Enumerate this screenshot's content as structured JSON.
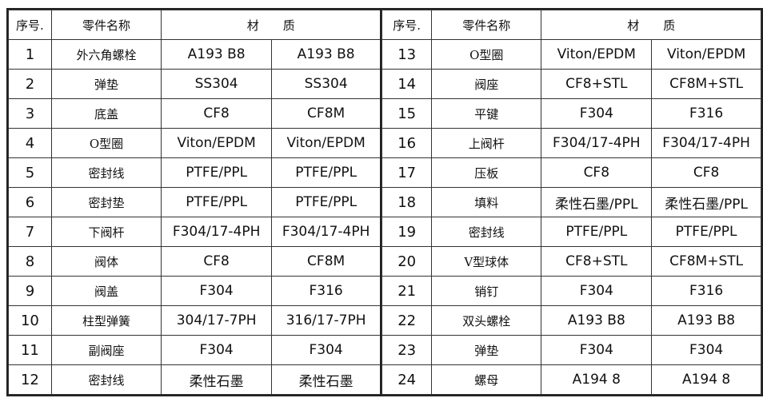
{
  "header": {
    "no": "序号.",
    "name": "零件名称",
    "material": "材　　质"
  },
  "left_rows": [
    {
      "no": "1",
      "name": "外六角螺栓",
      "m1": "A193  B8",
      "m2": "A193  B8"
    },
    {
      "no": "2",
      "name": "弹垫",
      "m1": "SS304",
      "m2": "SS304"
    },
    {
      "no": "3",
      "name": "底盖",
      "m1": "CF8",
      "m2": "CF8M"
    },
    {
      "no": "4",
      "name": "O型圈",
      "m1": "Viton/EPDM",
      "m2": "Viton/EPDM"
    },
    {
      "no": "5",
      "name": "密封线",
      "m1": "PTFE/PPL",
      "m2": "PTFE/PPL"
    },
    {
      "no": "6",
      "name": "密封垫",
      "m1": "PTFE/PPL",
      "m2": "PTFE/PPL"
    },
    {
      "no": "7",
      "name": "下阀杆",
      "m1": "F304/17-4PH",
      "m2": "F304/17-4PH"
    },
    {
      "no": "8",
      "name": "阀体",
      "m1": "CF8",
      "m2": "CF8M"
    },
    {
      "no": "9",
      "name": "阀盖",
      "m1": "F304",
      "m2": "F316"
    },
    {
      "no": "10",
      "name": "柱型弹簧",
      "m1": "304/17-7PH",
      "m2": "316/17-7PH"
    },
    {
      "no": "11",
      "name": "副阀座",
      "m1": "F304",
      "m2": "F304"
    },
    {
      "no": "12",
      "name": "密封线",
      "m1": "柔性石墨",
      "m2": "柔性石墨"
    }
  ],
  "right_rows": [
    {
      "no": "13",
      "name": "O型圈",
      "m1": "Viton/EPDM",
      "m2": "Viton/EPDM"
    },
    {
      "no": "14",
      "name": "阀座",
      "m1": "CF8+STL",
      "m2": "CF8M+STL"
    },
    {
      "no": "15",
      "name": "平键",
      "m1": "F304",
      "m2": "F316"
    },
    {
      "no": "16",
      "name": "上阀杆",
      "m1": "F304/17-4PH",
      "m2": "F304/17-4PH"
    },
    {
      "no": "17",
      "name": "压板",
      "m1": "CF8",
      "m2": "CF8"
    },
    {
      "no": "18",
      "name": "填料",
      "m1": "柔性石墨/PPL",
      "m2": "柔性石墨/PPL"
    },
    {
      "no": "19",
      "name": "密封线",
      "m1": "PTFE/PPL",
      "m2": "PTFE/PPL"
    },
    {
      "no": "20",
      "name": "V型球体",
      "m1": "CF8+STL",
      "m2": "CF8M+STL"
    },
    {
      "no": "21",
      "name": "销钉",
      "m1": "F304",
      "m2": "F316"
    },
    {
      "no": "22",
      "name": "双头螺栓",
      "m1": "A193  B8",
      "m2": "A193  B8"
    },
    {
      "no": "23",
      "name": "弹垫",
      "m1": "F304",
      "m2": "F304"
    },
    {
      "no": "24",
      "name": "螺母",
      "m1": "A194  8",
      "m2": "A194  8"
    }
  ]
}
